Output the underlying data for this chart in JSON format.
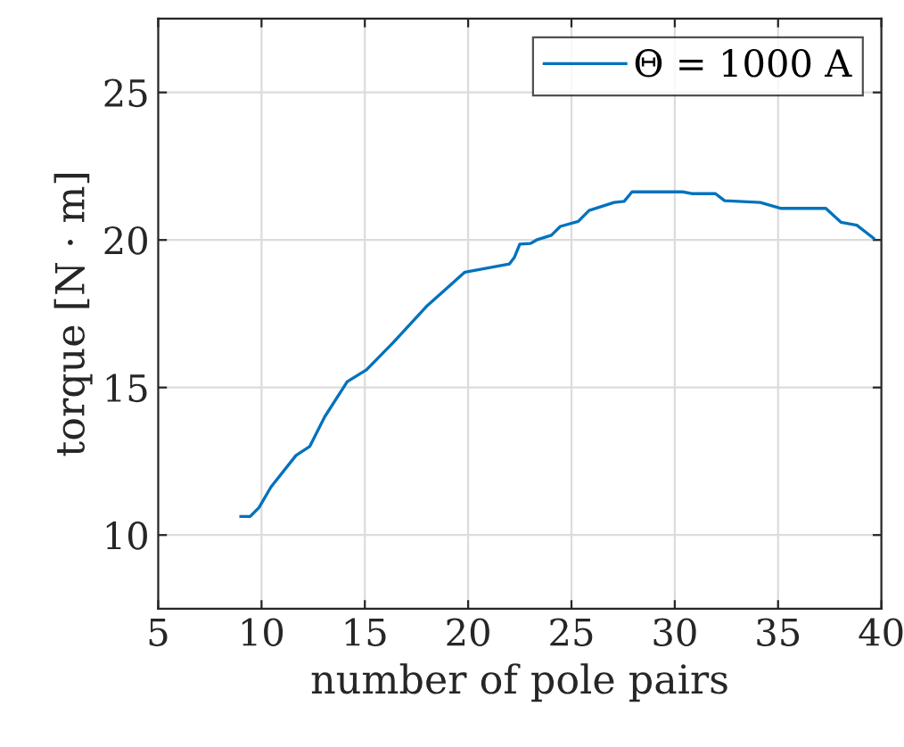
{
  "chart_data": {
    "type": "line",
    "xlabel": "number of pole pairs",
    "ylabel": "torque [N · m]",
    "xlim": [
      5,
      40
    ],
    "ylim": [
      7.5,
      27.5
    ],
    "xticks": [
      5,
      10,
      15,
      20,
      25,
      30,
      35,
      40
    ],
    "yticks": [
      10,
      15,
      20,
      25
    ],
    "grid": true,
    "legend": "top right",
    "marker": "none",
    "line_style": "solid",
    "series": [
      {
        "name": "Θ = 1000 A",
        "color": "#0072bd",
        "x": [
          9.0,
          9.45,
          9.88,
          10.46,
          11.67,
          12.33,
          13.06,
          14.15,
          15.08,
          16.38,
          17.97,
          19.84,
          22.0,
          22.23,
          22.5,
          23.02,
          23.31,
          24.03,
          24.46,
          25.33,
          25.85,
          27.06,
          27.55,
          27.93,
          30.38,
          30.82,
          31.97,
          32.41,
          34.14,
          35.15,
          37.31,
          38.04,
          38.81,
          39.62
        ],
        "values": [
          10.63,
          10.63,
          10.93,
          11.63,
          12.7,
          13.0,
          14.01,
          15.2,
          15.6,
          16.53,
          17.74,
          18.91,
          19.19,
          19.4,
          19.86,
          19.88,
          20.0,
          20.16,
          20.46,
          20.63,
          21.0,
          21.27,
          21.31,
          21.63,
          21.63,
          21.57,
          21.57,
          21.33,
          21.27,
          21.07,
          21.07,
          20.6,
          20.5,
          20.06
        ]
      }
    ]
  }
}
